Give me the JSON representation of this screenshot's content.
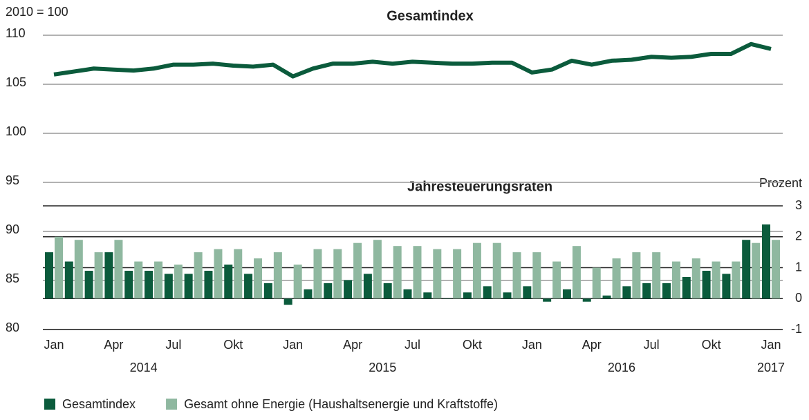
{
  "chart_data": {
    "type": "combo",
    "title": "Gesamtindex",
    "subtitle": "Jahresteuerungsraten",
    "y_axis_label": "2010 = 100",
    "y2_axis_label": "Prozent",
    "categories": [
      "Jan",
      null,
      null,
      "Apr",
      null,
      null,
      "Jul",
      null,
      null,
      "Okt",
      null,
      null,
      "Jan",
      null,
      null,
      "Apr",
      null,
      null,
      "Jul",
      null,
      null,
      "Okt",
      null,
      null,
      "Jan",
      null,
      null,
      "Apr",
      null,
      null,
      "Jul",
      null,
      null,
      "Okt",
      null,
      null,
      "Jan"
    ],
    "years": [
      "2014",
      "2015",
      "2016",
      "2017"
    ],
    "ylim": [
      80,
      110
    ],
    "yticks": [
      80,
      85,
      90,
      95,
      100,
      105,
      110
    ],
    "y2lim": [
      -1,
      3
    ],
    "y2ticks": [
      -1,
      0,
      1,
      2,
      3
    ],
    "grid": true,
    "legend": "bottom-left",
    "series": [
      {
        "name": "Gesamtindex",
        "type": "line",
        "axis": "y",
        "color": "#0b5b3c",
        "values": [
          106.0,
          106.3,
          106.6,
          106.5,
          106.4,
          106.6,
          107.0,
          107.0,
          107.1,
          106.9,
          106.8,
          107.0,
          105.8,
          106.6,
          107.1,
          107.1,
          107.3,
          107.1,
          107.3,
          107.2,
          107.1,
          107.1,
          107.2,
          107.2,
          106.2,
          106.5,
          107.4,
          107.0,
          107.4,
          107.5,
          107.8,
          107.7,
          107.8,
          108.1,
          108.1,
          109.1,
          108.6
        ]
      },
      {
        "name": "Gesamtindex",
        "type": "bar",
        "axis": "y2",
        "color": "#0b5b3c",
        "values": [
          1.5,
          1.2,
          0.9,
          1.5,
          0.9,
          0.9,
          0.8,
          0.8,
          0.9,
          1.1,
          0.8,
          0.5,
          -0.2,
          0.3,
          0.5,
          0.6,
          0.8,
          0.5,
          0.3,
          0.2,
          0.0,
          0.2,
          0.4,
          0.2,
          0.4,
          -0.1,
          0.3,
          -0.1,
          0.1,
          0.4,
          0.5,
          0.5,
          0.7,
          0.9,
          0.8,
          1.9,
          2.4
        ]
      },
      {
        "name": "Gesamt ohne Energie (Haushaltsenergie und Kraftstoffe)",
        "type": "bar",
        "axis": "y2",
        "color": "#8fb8a0",
        "values": [
          2.0,
          1.9,
          1.5,
          1.9,
          1.2,
          1.2,
          1.1,
          1.5,
          1.6,
          1.6,
          1.3,
          1.5,
          1.1,
          1.6,
          1.6,
          1.8,
          1.9,
          1.7,
          1.7,
          1.6,
          1.6,
          1.8,
          1.8,
          1.5,
          1.5,
          1.2,
          1.7,
          1.0,
          1.3,
          1.5,
          1.5,
          1.2,
          1.3,
          1.2,
          1.2,
          1.8,
          1.9
        ]
      }
    ]
  }
}
